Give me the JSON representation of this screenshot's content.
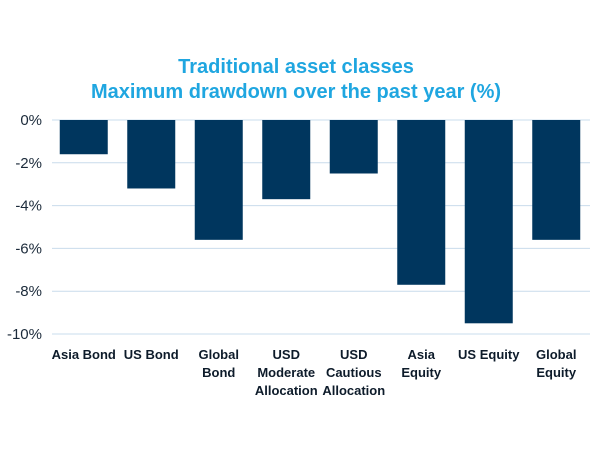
{
  "chart_data": {
    "type": "bar",
    "title_lines": [
      "Traditional asset classes",
      "Maximum drawdown over the past year (%)"
    ],
    "categories": [
      [
        "Asia Bond"
      ],
      [
        "US  Bond"
      ],
      [
        "Global",
        "Bond"
      ],
      [
        "USD",
        "Moderate",
        "Allocation"
      ],
      [
        "USD",
        "Cautious",
        "Allocation"
      ],
      [
        "Asia",
        "Equity"
      ],
      [
        "US Equity"
      ],
      [
        "Global",
        "Equity"
      ]
    ],
    "values": [
      -1.6,
      -3.2,
      -5.6,
      -3.7,
      -2.5,
      -7.7,
      -9.5,
      -5.6
    ],
    "ylim": [
      -10,
      0
    ],
    "yticks": [
      0,
      -2,
      -4,
      -6,
      -8,
      -10
    ],
    "ytick_labels": [
      "0%",
      "-2%",
      "-4%",
      "-6%",
      "-8%",
      "-10%"
    ],
    "grid": "horizontal",
    "legend": "none",
    "colors": {
      "bar": "#00365e",
      "title": "#1fa6e0",
      "grid": "#c9dcec"
    }
  }
}
